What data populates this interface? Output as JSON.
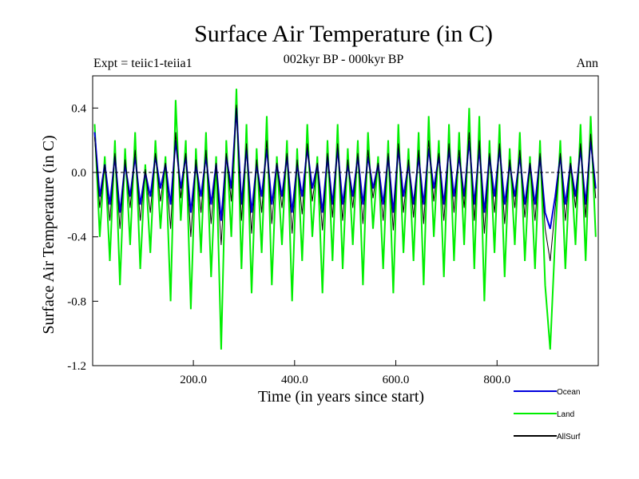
{
  "chart_data": {
    "type": "line",
    "title": "Surface Air Temperature (in C)",
    "subtitle": "002kyr BP - 000kyr BP",
    "top_left_label": "Expt = teiic1-teiia1",
    "top_right_label": "Ann",
    "xlabel": "Time (in years since start)",
    "ylabel": "Surface Air Temperature (in C)",
    "xlim": [
      1,
      1000
    ],
    "ylim": [
      -1.2,
      0.6
    ],
    "x_ticks": [
      200,
      400,
      600,
      800
    ],
    "x_tick_labels": [
      "200.0",
      "400.0",
      "600.0",
      "800.0"
    ],
    "y_ticks": [
      -1.2,
      -0.8,
      -0.4,
      0.0,
      0.4
    ],
    "y_tick_labels": [
      "-1.2",
      "-0.8",
      "-0.4",
      "0.0",
      "0.4"
    ],
    "zero_line": true,
    "legend_position": "bottom-right",
    "series": [
      {
        "name": "Land",
        "color": "#00ee00",
        "x": [
          5,
          15,
          25,
          35,
          45,
          55,
          65,
          75,
          85,
          95,
          105,
          115,
          125,
          135,
          145,
          155,
          165,
          175,
          185,
          195,
          205,
          215,
          225,
          235,
          245,
          255,
          265,
          275,
          285,
          295,
          305,
          315,
          325,
          335,
          345,
          355,
          365,
          375,
          385,
          395,
          405,
          415,
          425,
          435,
          445,
          455,
          465,
          475,
          485,
          495,
          505,
          515,
          525,
          535,
          545,
          555,
          565,
          575,
          585,
          595,
          605,
          615,
          625,
          635,
          645,
          655,
          665,
          675,
          685,
          695,
          705,
          715,
          725,
          735,
          745,
          755,
          765,
          775,
          785,
          795,
          805,
          815,
          825,
          835,
          845,
          855,
          865,
          875,
          885,
          895,
          905,
          915,
          925,
          935,
          945,
          955,
          965,
          975,
          985,
          995
        ],
        "y": [
          0.3,
          -0.4,
          0.1,
          -0.55,
          0.2,
          -0.7,
          0.15,
          -0.45,
          0.25,
          -0.6,
          0.05,
          -0.5,
          0.2,
          -0.35,
          0.1,
          -0.8,
          0.45,
          -0.3,
          0.2,
          -0.85,
          0.15,
          -0.5,
          0.25,
          -0.65,
          0.1,
          -1.1,
          0.2,
          -0.4,
          0.52,
          -0.6,
          0.3,
          -0.75,
          0.15,
          -0.5,
          0.35,
          -0.7,
          0.1,
          -0.45,
          0.2,
          -0.8,
          0.15,
          -0.55,
          0.3,
          -0.4,
          0.1,
          -0.75,
          0.2,
          -0.55,
          0.3,
          -0.6,
          0.15,
          -0.45,
          0.2,
          -0.7,
          0.25,
          -0.35,
          0.1,
          -0.6,
          0.2,
          -0.75,
          0.3,
          -0.5,
          0.15,
          -0.55,
          0.25,
          -0.7,
          0.35,
          -0.4,
          0.2,
          -0.65,
          0.3,
          -0.55,
          0.25,
          -0.45,
          0.4,
          -0.6,
          0.35,
          -0.8,
          0.2,
          -0.5,
          0.3,
          -0.65,
          0.15,
          -0.45,
          0.25,
          -0.55,
          0.1,
          -0.6,
          0.2,
          -0.7,
          -1.1,
          -0.4,
          0.2,
          -0.6,
          0.1,
          -0.45,
          0.3,
          -0.55,
          0.35,
          -0.4
        ]
      },
      {
        "name": "Ocean",
        "color": "#0000dd",
        "x": [
          5,
          15,
          25,
          35,
          45,
          55,
          65,
          75,
          85,
          95,
          105,
          115,
          125,
          135,
          145,
          155,
          165,
          175,
          185,
          195,
          205,
          215,
          225,
          235,
          245,
          255,
          265,
          275,
          285,
          295,
          305,
          315,
          325,
          335,
          345,
          355,
          365,
          375,
          385,
          395,
          405,
          415,
          425,
          435,
          445,
          455,
          465,
          475,
          485,
          495,
          505,
          515,
          525,
          535,
          545,
          555,
          565,
          575,
          585,
          595,
          605,
          615,
          625,
          635,
          645,
          655,
          665,
          675,
          685,
          695,
          705,
          715,
          725,
          735,
          745,
          755,
          765,
          775,
          785,
          795,
          805,
          815,
          825,
          835,
          845,
          855,
          865,
          875,
          885,
          895,
          905,
          915,
          925,
          935,
          945,
          955,
          965,
          975,
          985,
          995
        ],
        "y": [
          0.25,
          -0.15,
          0.05,
          -0.2,
          0.1,
          -0.25,
          0.05,
          -0.15,
          0.1,
          -0.2,
          0.0,
          -0.15,
          0.1,
          -0.1,
          0.05,
          -0.2,
          0.2,
          -0.1,
          0.1,
          -0.25,
          0.05,
          -0.15,
          0.1,
          -0.2,
          0.05,
          -0.3,
          0.1,
          -0.1,
          0.4,
          -0.2,
          0.15,
          -0.25,
          0.05,
          -0.15,
          0.15,
          -0.2,
          0.05,
          -0.15,
          0.1,
          -0.25,
          0.05,
          -0.15,
          0.15,
          -0.1,
          0.05,
          -0.25,
          0.1,
          -0.2,
          0.15,
          -0.2,
          0.05,
          -0.15,
          0.1,
          -0.2,
          0.1,
          -0.1,
          0.05,
          -0.2,
          0.1,
          -0.25,
          0.15,
          -0.15,
          0.05,
          -0.2,
          0.1,
          -0.2,
          0.15,
          -0.1,
          0.1,
          -0.2,
          0.15,
          -0.15,
          0.1,
          -0.15,
          0.2,
          -0.2,
          0.15,
          -0.25,
          0.1,
          -0.15,
          0.15,
          -0.2,
          0.05,
          -0.15,
          0.1,
          -0.2,
          0.05,
          -0.2,
          0.1,
          -0.25,
          -0.35,
          -0.15,
          0.1,
          -0.2,
          0.05,
          -0.15,
          0.15,
          -0.2,
          0.2,
          -0.1
        ]
      },
      {
        "name": "AllSurf",
        "color": "#000000",
        "x": [
          5,
          15,
          25,
          35,
          45,
          55,
          65,
          75,
          85,
          95,
          105,
          115,
          125,
          135,
          145,
          155,
          165,
          175,
          185,
          195,
          205,
          215,
          225,
          235,
          245,
          255,
          265,
          275,
          285,
          295,
          305,
          315,
          325,
          335,
          345,
          355,
          365,
          375,
          385,
          395,
          405,
          415,
          425,
          435,
          445,
          455,
          465,
          475,
          485,
          495,
          505,
          515,
          525,
          535,
          545,
          555,
          565,
          575,
          585,
          595,
          605,
          615,
          625,
          635,
          645,
          655,
          665,
          675,
          685,
          695,
          705,
          715,
          725,
          735,
          745,
          755,
          765,
          775,
          785,
          795,
          805,
          815,
          825,
          835,
          845,
          855,
          865,
          875,
          885,
          895,
          905,
          915,
          925,
          935,
          945,
          955,
          965,
          975,
          985,
          995
        ],
        "y": [
          0.22,
          -0.22,
          0.05,
          -0.3,
          0.12,
          -0.35,
          0.08,
          -0.22,
          0.14,
          -0.3,
          0.02,
          -0.25,
          0.12,
          -0.18,
          0.06,
          -0.35,
          0.25,
          -0.16,
          0.12,
          -0.4,
          0.08,
          -0.25,
          0.14,
          -0.32,
          0.06,
          -0.45,
          0.12,
          -0.18,
          0.42,
          -0.3,
          0.18,
          -0.38,
          0.08,
          -0.25,
          0.2,
          -0.32,
          0.06,
          -0.22,
          0.12,
          -0.38,
          0.08,
          -0.26,
          0.18,
          -0.18,
          0.06,
          -0.36,
          0.12,
          -0.28,
          0.18,
          -0.3,
          0.08,
          -0.22,
          0.12,
          -0.32,
          0.14,
          -0.16,
          0.06,
          -0.3,
          0.12,
          -0.36,
          0.18,
          -0.25,
          0.08,
          -0.28,
          0.14,
          -0.32,
          0.2,
          -0.18,
          0.12,
          -0.3,
          0.18,
          -0.25,
          0.14,
          -0.22,
          0.25,
          -0.3,
          0.2,
          -0.38,
          0.12,
          -0.25,
          0.18,
          -0.32,
          0.08,
          -0.22,
          0.14,
          -0.28,
          0.06,
          -0.3,
          0.12,
          -0.35,
          -0.55,
          -0.22,
          0.12,
          -0.3,
          0.06,
          -0.22,
          0.18,
          -0.28,
          0.24,
          -0.16
        ]
      }
    ]
  }
}
